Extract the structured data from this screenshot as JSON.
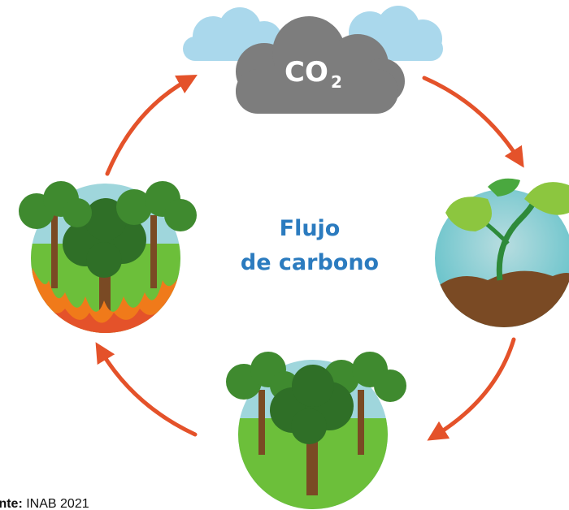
{
  "cloud": {
    "label": "CO",
    "subscript": "2"
  },
  "center": {
    "line1": "Flujo",
    "line2": "de carbono"
  },
  "source": {
    "label": "Fuente:",
    "text": "INAB 2021"
  }
}
